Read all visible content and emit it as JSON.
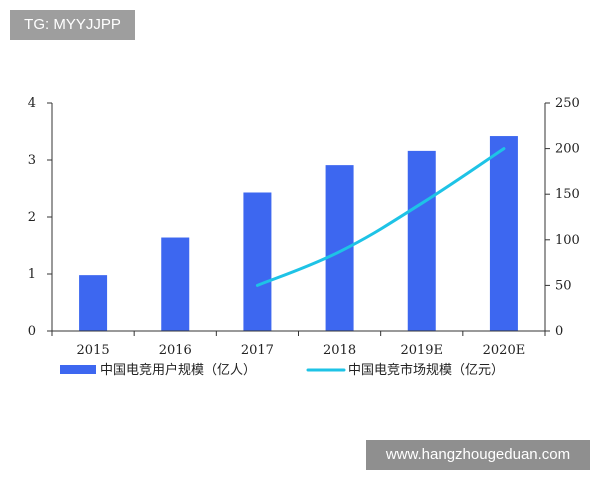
{
  "watermark_top": "TG: MYYJJPP",
  "watermark_bottom": "www.hangzhougeduan.com",
  "colors": {
    "bar": "#3d67f0",
    "line": "#1ec3e6",
    "axis": "#333333"
  },
  "chart_data": {
    "type": "bar",
    "categories": [
      "2015",
      "2016",
      "2017",
      "2018",
      "2019E",
      "2020E"
    ],
    "series": [
      {
        "name": "中国电竞用户规模（亿人）",
        "type": "bar",
        "axis": "left",
        "values": [
          0.98,
          1.64,
          2.43,
          2.91,
          3.16,
          3.42
        ]
      },
      {
        "name": "中国电竞市场规模（亿元）",
        "type": "line",
        "axis": "right",
        "values": [
          null,
          null,
          50,
          87,
          140,
          200
        ]
      }
    ],
    "y_left": {
      "min": 0,
      "max": 4,
      "ticks": [
        "0",
        "1",
        "2",
        "3",
        "4"
      ]
    },
    "y_right": {
      "min": 0,
      "max": 250,
      "ticks": [
        "0",
        "50",
        "100",
        "150",
        "200",
        "250"
      ]
    },
    "legend_position": "bottom",
    "grid": false
  }
}
